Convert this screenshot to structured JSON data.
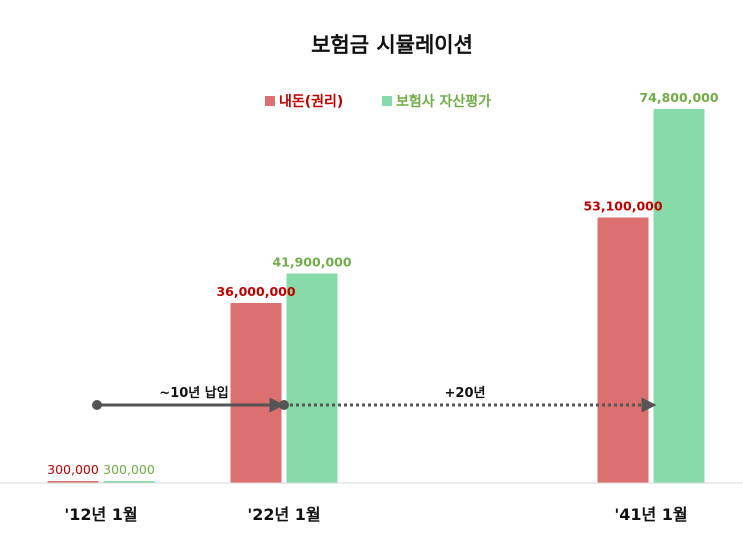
{
  "chart_data": {
    "type": "bar",
    "title": "보험금 시뮬레이션",
    "categories": [
      "'12년 1월",
      "'22년 1월",
      "'41년 1월"
    ],
    "series": [
      {
        "name": "내돈(권리)",
        "color": "#dc7070",
        "label_color": "#c00000",
        "values": [
          300000,
          36000000,
          53100000
        ],
        "labels": [
          "300,000",
          "36,000,000",
          "53,100,000"
        ]
      },
      {
        "name": "보험사 자산평가",
        "color": "#86dba8",
        "label_color": "#70ad47",
        "values": [
          300000,
          41900000,
          74800000
        ],
        "labels": [
          "300,000",
          "41,900,000",
          "74,800,000"
        ]
      }
    ],
    "ylim": [
      0,
      80000000
    ],
    "grid": false,
    "legend_position": "top",
    "annotations": [
      {
        "text": "~10년 납입",
        "style": "solid-arrow",
        "from_category": 0,
        "to_category": 1
      },
      {
        "text": "+20년",
        "style": "dotted-arrow",
        "from_category": 1,
        "to_category": 2
      }
    ]
  }
}
